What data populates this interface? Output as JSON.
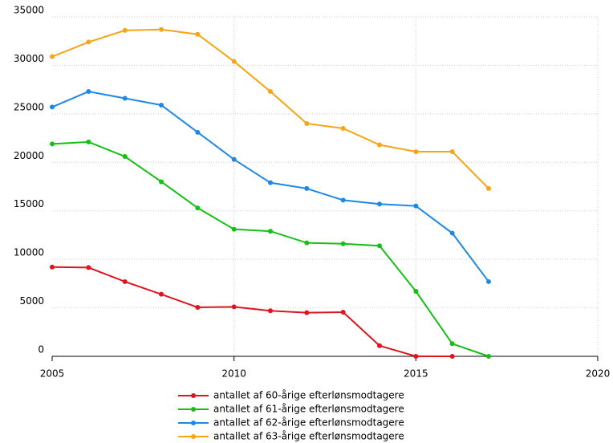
{
  "chart_data": {
    "type": "line",
    "x": [
      2005,
      2006,
      2007,
      2008,
      2009,
      2010,
      2011,
      2012,
      2013,
      2014,
      2015,
      2016,
      2017
    ],
    "series": [
      {
        "name": "antallet af 60-årige efterlønsmodtagere",
        "color": "#e0141e",
        "values": [
          9200,
          9150,
          7700,
          6400,
          5050,
          5100,
          4700,
          4500,
          4550,
          1100,
          0,
          0,
          null
        ]
      },
      {
        "name": "antallet af 61-årige efterlønsmodtagere",
        "color": "#14c014",
        "values": [
          21900,
          22100,
          20600,
          18000,
          15300,
          13100,
          12900,
          11700,
          11600,
          11400,
          6700,
          1300,
          0
        ]
      },
      {
        "name": "antallet af 62-årige efterlønsmodtagere",
        "color": "#1e88e5",
        "values": [
          25700,
          27300,
          26600,
          25900,
          23100,
          20300,
          17900,
          17300,
          16100,
          15700,
          15500,
          12700,
          7700
        ]
      },
      {
        "name": "antallet af 63-årige efterlønsmodtagere",
        "color": "#f5a516",
        "values": [
          30900,
          32400,
          33600,
          33700,
          33200,
          30400,
          27300,
          24000,
          23500,
          21800,
          21100,
          21100,
          17300
        ]
      }
    ],
    "xlim": [
      2005,
      2020
    ],
    "xticks": [
      2005,
      2010,
      2015,
      2020
    ],
    "ylim": [
      0,
      35000
    ],
    "yticks": [
      0,
      5000,
      10000,
      15000,
      20000,
      25000,
      30000,
      35000
    ],
    "grid": true,
    "legend": "bottom"
  }
}
